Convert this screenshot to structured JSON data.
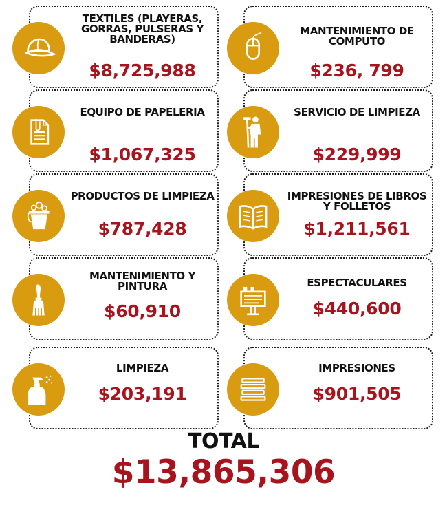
{
  "colors": {
    "accent": "#d99b10",
    "amount": "#a8141d",
    "text": "#111111"
  },
  "items": [
    {
      "label": "TEXTILES (PLAYERAS, GORRAS, PULSERAS Y BANDERAS)",
      "amount": "$8,725,988",
      "icon": "cap-icon"
    },
    {
      "label": "MANTENIMIENTO DE COMPUTO",
      "amount": "$236, 799",
      "icon": "mouse-icon"
    },
    {
      "label": "EQUIPO DE PAPELERIA",
      "amount": "$1,067,325",
      "icon": "paper-clip-document-icon"
    },
    {
      "label": "SERVICIO DE LIMPIEZA",
      "amount": "$229,999",
      "icon": "cleaner-person-icon"
    },
    {
      "label": "PRODUCTOS DE LIMPIEZA",
      "amount": "$787,428",
      "icon": "bucket-icon"
    },
    {
      "label": "IMPRESIONES DE LIBROS Y FOLLETOS",
      "amount": "$1,211,561",
      "icon": "open-book-icon"
    },
    {
      "label": "MANTENIMIENTO Y PINTURA",
      "amount": "$60,910",
      "icon": "paintbrush-icon"
    },
    {
      "label": "ESPECTACULARES",
      "amount": "$440,600",
      "icon": "billboard-icon"
    },
    {
      "label": "LIMPIEZA",
      "amount": "$203,191",
      "icon": "spray-bottle-icon"
    },
    {
      "label": "IMPRESIONES",
      "amount": "$901,505",
      "icon": "paper-stack-icon"
    }
  ],
  "total": {
    "label": "TOTAL",
    "amount": "$13,865,306"
  }
}
